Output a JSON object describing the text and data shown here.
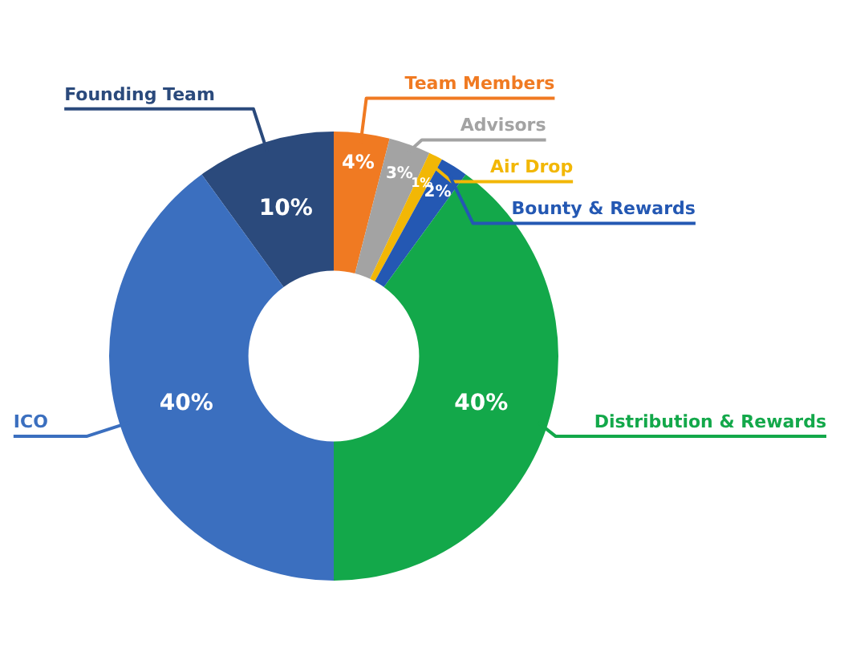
{
  "chart_data": {
    "type": "donut",
    "categories": [
      "Founding Team",
      "Team Members",
      "Advisors",
      "Air Drop",
      "Bounty & Rewards",
      "Distribution & Rewards",
      "ICO"
    ],
    "values": [
      10,
      4,
      3,
      1,
      2,
      40,
      40
    ],
    "value_labels": [
      "10%",
      "4%",
      "3%",
      "1%",
      "2%",
      "40%",
      "40%"
    ],
    "colors": [
      "#2b4a7c",
      "#f07a22",
      "#a3a3a3",
      "#f2b705",
      "#2458b3",
      "#13a84a",
      "#3b6fbf"
    ],
    "legend": false
  }
}
